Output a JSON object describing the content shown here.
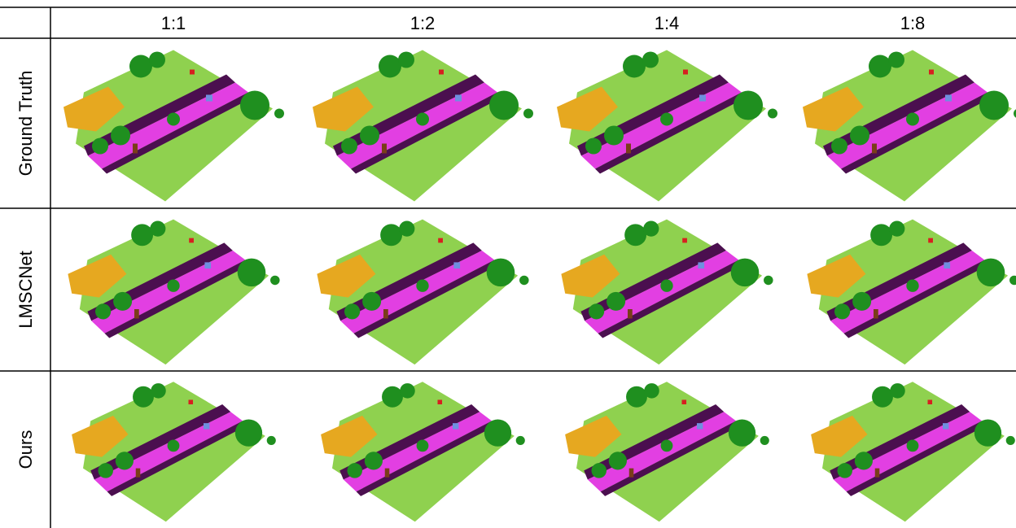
{
  "header": {
    "columns": [
      "1:1",
      "1:2",
      "1:4",
      "1:8"
    ]
  },
  "rows": [
    {
      "label": "Ground Truth"
    },
    {
      "label": "LMSCNet"
    },
    {
      "label": "Ours"
    }
  ]
}
